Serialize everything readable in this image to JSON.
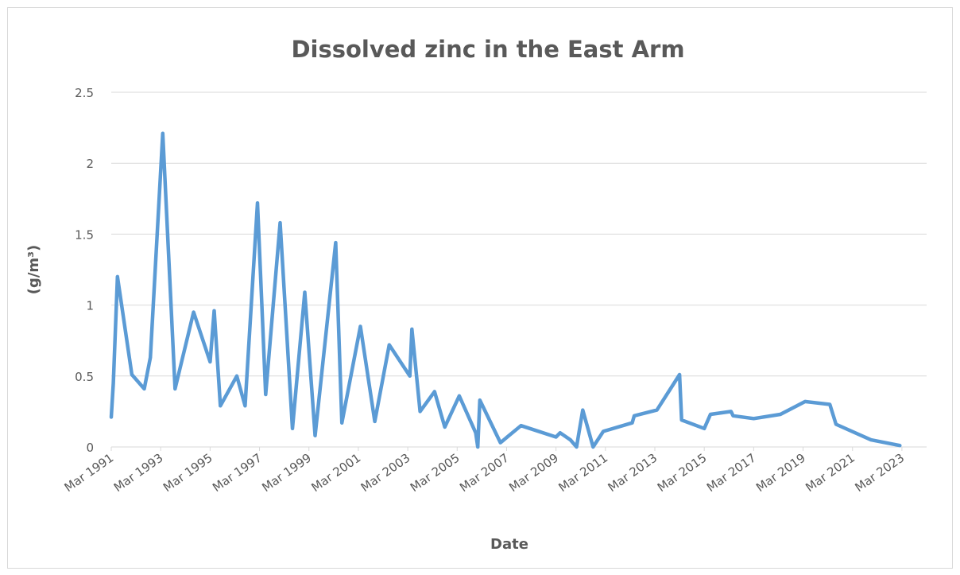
{
  "chart_data": {
    "type": "line",
    "title": "Dissolved zinc in the East Arm",
    "x_label": "Date",
    "y_label": "(g/m³)",
    "x": [
      "1991-03",
      "1991-04",
      "1991-06",
      "1992-01",
      "1992-07",
      "1992-10",
      "1993-04",
      "1993-10",
      "1994-07",
      "1995-03",
      "1995-05",
      "1995-08",
      "1996-04",
      "1996-08",
      "1997-02",
      "1997-06",
      "1998-01",
      "1998-07",
      "1999-01",
      "1999-06",
      "2000-04",
      "2000-07",
      "2001-04",
      "2001-11",
      "2002-06",
      "2003-04",
      "2003-05",
      "2003-09",
      "2004-04",
      "2004-09",
      "2005-04",
      "2005-12",
      "2006-01",
      "2006-02",
      "2006-12",
      "2007-10",
      "2009-03",
      "2009-05",
      "2009-10",
      "2010-01",
      "2010-04",
      "2010-09",
      "2011-02",
      "2012-04",
      "2012-05",
      "2013-04",
      "2014-03",
      "2014-04",
      "2015-03",
      "2015-06",
      "2016-04",
      "2016-05",
      "2017-03",
      "2018-04",
      "2019-04",
      "2020-04",
      "2020-07",
      "2021-12",
      "2023-02"
    ],
    "series": [
      {
        "name": "Dissolved zinc",
        "color": "#5b9bd5",
        "values": [
          0.21,
          0.45,
          1.2,
          0.51,
          0.41,
          0.63,
          2.21,
          0.41,
          0.95,
          0.6,
          0.96,
          0.29,
          0.5,
          0.29,
          1.72,
          0.37,
          1.58,
          0.13,
          1.09,
          0.08,
          1.44,
          0.17,
          0.85,
          0.18,
          0.72,
          0.5,
          0.83,
          0.25,
          0.39,
          0.14,
          0.36,
          0.1,
          0,
          0.33,
          0.03,
          0.15,
          0.07,
          0.1,
          0.05,
          0,
          0.26,
          0,
          0.11,
          0.17,
          0.22,
          0.26,
          0.51,
          0.19,
          0.13,
          0.23,
          0.25,
          0.22,
          0.2,
          0.23,
          0.32,
          0.3,
          0.16,
          0.05,
          0.01
        ]
      }
    ],
    "xlim": [
      "1991-03",
      "2024-03"
    ],
    "xticks": [
      {
        "value": "1991-03",
        "label": "Mar 1991"
      },
      {
        "value": "1993-03",
        "label": "Mar 1993"
      },
      {
        "value": "1995-03",
        "label": "Mar 1995"
      },
      {
        "value": "1997-03",
        "label": "Mar 1997"
      },
      {
        "value": "1999-03",
        "label": "Mar 1999"
      },
      {
        "value": "2001-03",
        "label": "Mar 2001"
      },
      {
        "value": "2003-03",
        "label": "Mar 2003"
      },
      {
        "value": "2005-03",
        "label": "Mar 2005"
      },
      {
        "value": "2007-03",
        "label": "Mar 2007"
      },
      {
        "value": "2009-03",
        "label": "Mar 2009"
      },
      {
        "value": "2011-03",
        "label": "Mar 2011"
      },
      {
        "value": "2013-03",
        "label": "Mar 2013"
      },
      {
        "value": "2015-03",
        "label": "Mar 2015"
      },
      {
        "value": "2017-03",
        "label": "Mar 2017"
      },
      {
        "value": "2019-03",
        "label": "Mar 2019"
      },
      {
        "value": "2021-03",
        "label": "Mar 2021"
      },
      {
        "value": "2023-03",
        "label": "Mar 2023"
      }
    ],
    "ylim": [
      0,
      2.5
    ],
    "yticks": [
      0,
      0.5,
      1,
      1.5,
      2,
      2.5
    ],
    "grid": true
  }
}
